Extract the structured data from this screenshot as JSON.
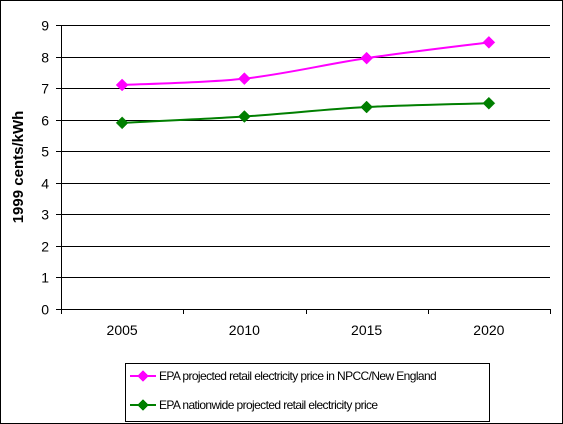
{
  "chart_data": {
    "type": "line",
    "categories": [
      "2005",
      "2010",
      "2015",
      "2020"
    ],
    "ylabel": "1999 cents/kWh",
    "ylim": [
      0,
      9
    ],
    "yticks": [
      "0",
      "1",
      "2",
      "3",
      "4",
      "5",
      "6",
      "7",
      "8",
      "9"
    ],
    "grid": true,
    "legend_position": "bottom",
    "series": [
      {
        "name": "EPA projected retail electricity price in NPCC/New England",
        "values": [
          7.1,
          7.3,
          7.95,
          8.45
        ],
        "color": "#ff00ff",
        "marker": "diamond"
      },
      {
        "name": "EPA nationwide projected retail electricity price",
        "values": [
          5.9,
          6.1,
          6.4,
          6.52
        ],
        "color": "#007f00",
        "marker": "diamond"
      }
    ]
  }
}
